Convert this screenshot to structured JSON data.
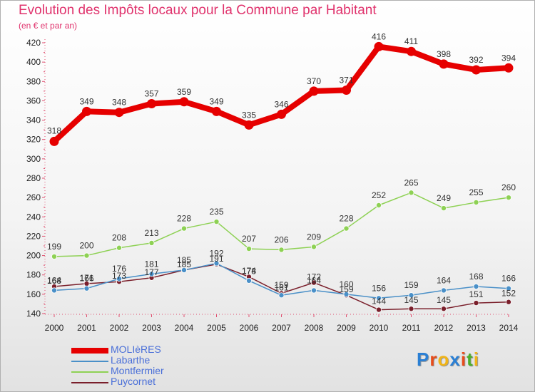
{
  "header": {
    "title": "Evolution des Impôts locaux pour la Commune par Habitant",
    "subtitle": "(en € et par an)"
  },
  "brand": {
    "letters": [
      "P",
      "r",
      "o",
      "x",
      "i",
      "t",
      "i"
    ],
    "colors": [
      "#2a7fd4",
      "#e84c1a",
      "#f0b418",
      "#2a7fd4",
      "#e84c1a",
      "#4caf2a",
      "#f0b418"
    ]
  },
  "chart_data": {
    "type": "line",
    "title": "Evolution des Impôts locaux pour la Commune par Habitant",
    "subtitle": "(en € et par an)",
    "x": [
      "2000",
      "2001",
      "2002",
      "2003",
      "2004",
      "2005",
      "2006",
      "2007",
      "2008",
      "2009",
      "2010",
      "2011",
      "2012",
      "2013",
      "2014"
    ],
    "ylim": [
      140,
      420
    ],
    "yticks": [
      140,
      160,
      180,
      200,
      220,
      240,
      260,
      280,
      300,
      320,
      340,
      360,
      380,
      400,
      420
    ],
    "grid": false,
    "legend": "bottom-left",
    "series": [
      {
        "name": "MOLIèRES",
        "color": "#e60000",
        "values": [
          318,
          349,
          348,
          357,
          359,
          349,
          335,
          346,
          370,
          371,
          416,
          411,
          398,
          392,
          394
        ]
      },
      {
        "name": "Labarthe",
        "color": "#4a90c8",
        "values": [
          164,
          166,
          176,
          181,
          185,
          192,
          174,
          159,
          164,
          160,
          156,
          159,
          164,
          168,
          166
        ]
      },
      {
        "name": "Montfermier",
        "color": "#8ed154",
        "values": [
          199,
          200,
          208,
          213,
          228,
          235,
          207,
          206,
          209,
          228,
          252,
          265,
          249,
          255,
          260
        ]
      },
      {
        "name": "Puycornet",
        "color": "#7a1f2b",
        "values": [
          168,
          171,
          173,
          177,
          185,
          191,
          178,
          161,
          172,
          159,
          144,
          145,
          145,
          151,
          152
        ]
      }
    ]
  }
}
